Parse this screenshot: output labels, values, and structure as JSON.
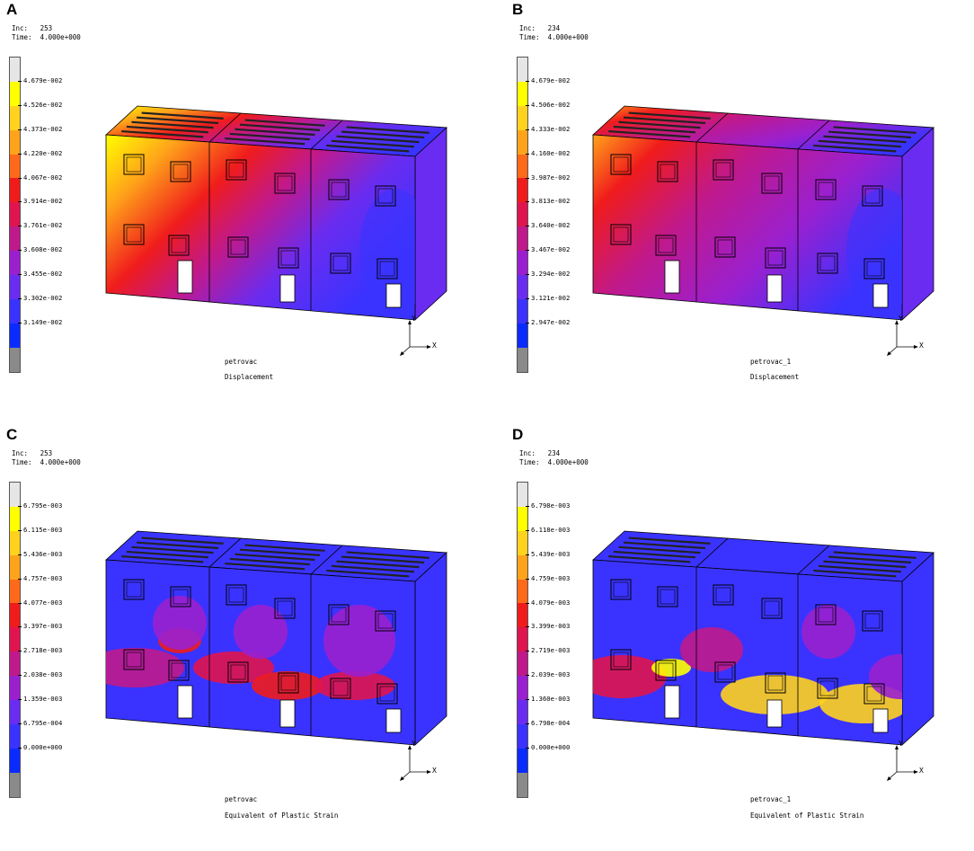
{
  "palette": [
    "#e6e6e6",
    "#ffff00",
    "#ffd21e",
    "#ffa31a",
    "#ff6a1a",
    "#f01c1c",
    "#e0144f",
    "#c0198c",
    "#9a20cf",
    "#6a2cf0",
    "#3a33ff",
    "#0a2bff",
    "#8a8a8a"
  ],
  "panels": [
    {
      "letter": "A",
      "inc_line": "Inc:   253",
      "time_line": "Time:  4.000e+000",
      "legend": [
        "4.679e-002",
        "4.526e-002",
        "4.373e-002",
        "4.220e-002",
        "4.067e-002",
        "3.914e-002",
        "3.761e-002",
        "3.608e-002",
        "3.455e-002",
        "3.302e-002",
        "3.149e-002"
      ],
      "model_name": "petrovac",
      "result_name": "Displacement",
      "axis_y": "Y",
      "axis_x": "X",
      "field": "displacement"
    },
    {
      "letter": "B",
      "inc_line": "Inc:   234",
      "time_line": "Time:  4.000e+000",
      "legend": [
        "4.679e-002",
        "4.506e-002",
        "4.333e-002",
        "4.160e-002",
        "3.987e-002",
        "3.813e-002",
        "3.640e-002",
        "3.467e-002",
        "3.294e-002",
        "3.121e-002",
        "2.947e-002"
      ],
      "model_name": "petrovac_1",
      "result_name": "Displacement",
      "axis_y": "Y",
      "axis_x": "X",
      "field": "displacement_b"
    },
    {
      "letter": "C",
      "inc_line": "Inc:   253",
      "time_line": "Time:  4.000e+000",
      "legend": [
        "6.795e-003",
        "6.115e-003",
        "5.436e-003",
        "4.757e-003",
        "4.077e-003",
        "3.397e-003",
        "2.718e-003",
        "2.038e-003",
        "1.359e-003",
        "6.795e-004",
        "0.000e+000"
      ],
      "model_name": "petrovac",
      "result_name": "Equivalent of Plastic Strain",
      "axis_y": "Y",
      "axis_x": "X",
      "field": "strain"
    },
    {
      "letter": "D",
      "inc_line": "Inc:   234",
      "time_line": "Time:  4.000e+000",
      "legend": [
        "6.798e-003",
        "6.118e-003",
        "5.439e-003",
        "4.759e-003",
        "4.079e-003",
        "3.399e-003",
        "2.719e-003",
        "2.039e-003",
        "1.360e-003",
        "6.798e-004",
        "0.000e+000"
      ],
      "model_name": "petrovac_1",
      "result_name": "Equivalent of Plastic Strain",
      "axis_y": "Y",
      "axis_x": "X",
      "field": "strain_d"
    }
  ]
}
